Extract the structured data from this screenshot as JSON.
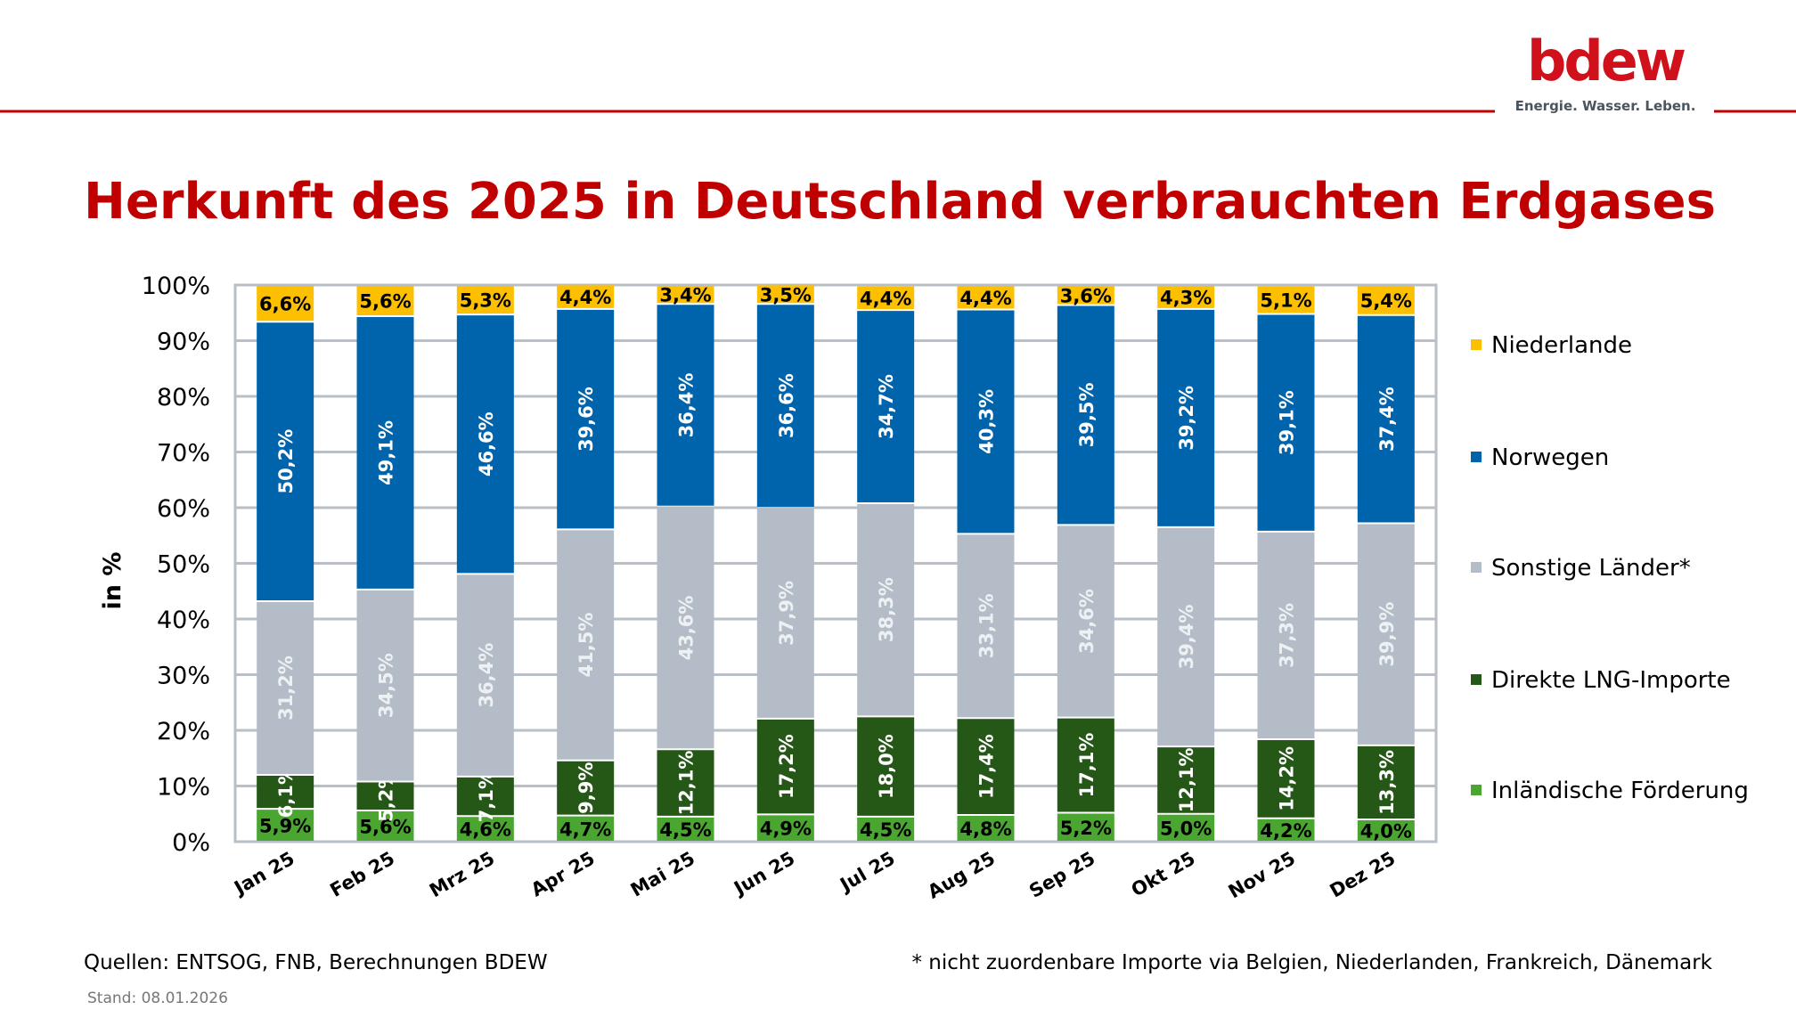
{
  "logo": {
    "text": "bdew",
    "tagline": "Energie. Wasser. Leben."
  },
  "colors": {
    "accent": "#c00000",
    "grid": "#b9bfc6"
  },
  "chart_data": {
    "type": "bar",
    "stacked": true,
    "title": "Herkunft des 2025 in Deutschland verbrauchten Erdgases",
    "ylabel": "in %",
    "xlabel": "",
    "ylim": [
      0,
      100
    ],
    "yticks": [
      "0%",
      "10%",
      "20%",
      "30%",
      "40%",
      "50%",
      "60%",
      "70%",
      "80%",
      "90%",
      "100%"
    ],
    "grid": true,
    "legend_position": "right",
    "categories": [
      "Jan 25",
      "Feb 25",
      "Mrz 25",
      "Apr 25",
      "Mai 25",
      "Jun 25",
      "Jul 25",
      "Aug 25",
      "Sep 25",
      "Okt 25",
      "Nov 25",
      "Dez 25"
    ],
    "series": [
      {
        "name": "Inländische Förderung",
        "color": "#4aa531",
        "label_color": "#000000",
        "label_rotated": false,
        "values": [
          5.9,
          5.6,
          4.6,
          4.7,
          4.5,
          4.9,
          4.5,
          4.8,
          5.2,
          5.0,
          4.2,
          4.0
        ]
      },
      {
        "name": "Direkte LNG-Importe",
        "color": "#255716",
        "label_color": "#ffffff",
        "label_rotated": true,
        "values": [
          6.1,
          5.2,
          7.1,
          9.9,
          12.1,
          17.2,
          18.0,
          17.4,
          17.1,
          12.1,
          14.2,
          13.3
        ]
      },
      {
        "name": "Sonstige Länder*",
        "color": "#b4bdc7",
        "label_color": "#eef1f4",
        "label_rotated": true,
        "values": [
          31.2,
          34.5,
          36.4,
          41.5,
          43.6,
          37.9,
          38.3,
          33.1,
          34.6,
          39.4,
          37.3,
          39.9
        ]
      },
      {
        "name": "Norwegen",
        "color": "#0064ad",
        "label_color": "#ffffff",
        "label_rotated": true,
        "values": [
          50.2,
          49.1,
          46.6,
          39.6,
          36.4,
          36.6,
          34.7,
          40.3,
          39.5,
          39.2,
          39.1,
          37.4
        ]
      },
      {
        "name": "Niederlande",
        "color": "#fcc000",
        "label_color": "#000000",
        "label_rotated": false,
        "values": [
          6.6,
          5.6,
          5.3,
          4.4,
          3.4,
          3.5,
          4.4,
          4.4,
          3.6,
          4.3,
          5.1,
          5.4
        ]
      }
    ]
  },
  "footer": {
    "sources": "Quellen: ENTSOG, FNB, Berechnungen BDEW",
    "note": "* nicht zuordenbare Importe via Belgien, Niederlanden, Frankreich, Dänemark",
    "stand": "Stand: 08.01.2026"
  }
}
